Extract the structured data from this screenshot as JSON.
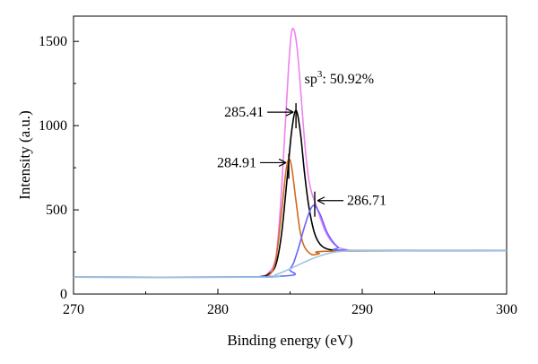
{
  "chart_data": {
    "type": "line",
    "title": "",
    "xlabel": "Binding energy (eV)",
    "ylabel": "Intensity (a.u.)",
    "xlim": [
      270,
      300
    ],
    "ylim": [
      0,
      1650
    ],
    "xticks": [
      270,
      280,
      290,
      300
    ],
    "yticks": [
      0,
      500,
      1000,
      1500
    ],
    "xtick_labels": [
      "270",
      "280",
      "290",
      "300"
    ],
    "ytick_labels": [
      "0",
      "500",
      "1000",
      "1500"
    ],
    "grid": false,
    "legend": "none",
    "series": [
      {
        "color": "#ee82ee",
        "x": [
          270,
          282,
          283,
          283.5,
          284,
          284.3,
          284.6,
          284.9,
          285.1,
          285.3,
          285.5,
          285.7,
          285.9,
          286.1,
          286.3,
          286.5,
          286.8,
          287.1,
          287.4,
          287.8,
          288.3,
          289,
          290,
          300
        ],
        "y": [
          100,
          100,
          105,
          125,
          210,
          480,
          900,
          1350,
          1555,
          1560,
          1450,
          1250,
          1020,
          820,
          680,
          600,
          530,
          450,
          380,
          320,
          280,
          262,
          258,
          258
        ]
      },
      {
        "color": "#000000",
        "x": [
          270,
          282,
          283,
          283.5,
          284,
          284.4,
          284.8,
          285.1,
          285.4,
          285.7,
          286,
          286.3,
          286.7,
          287.2,
          288,
          289,
          290,
          300
        ],
        "y": [
          100,
          100,
          104,
          118,
          170,
          350,
          690,
          960,
          1090,
          970,
          720,
          520,
          360,
          285,
          260,
          258,
          258,
          258
        ]
      },
      {
        "color": "#d2691e",
        "x": [
          270,
          282.5,
          283.5,
          284,
          284.4,
          284.7,
          284.9,
          285.1,
          285.4,
          285.7,
          286,
          286.5,
          287,
          288,
          300
        ],
        "y": [
          100,
          100,
          110,
          200,
          480,
          720,
          800,
          760,
          560,
          370,
          280,
          235,
          240,
          255,
          258
        ]
      },
      {
        "color": "#6666ff",
        "x": [
          270,
          284,
          285,
          285.5,
          286,
          286.4,
          286.7,
          287.1,
          287.6,
          288.3,
          289,
          300
        ],
        "y": [
          100,
          105,
          150,
          250,
          400,
          500,
          525,
          470,
          360,
          280,
          260,
          258
        ]
      },
      {
        "color": "#9bc8e0",
        "x": [
          270,
          283,
          284,
          285,
          286,
          287,
          288,
          289,
          290,
          300
        ],
        "y": [
          100,
          100,
          115,
          150,
          190,
          225,
          248,
          256,
          258,
          258
        ]
      }
    ],
    "annotations": [
      {
        "text": "285.41",
        "x": 285.41,
        "y": 1080,
        "side": "left"
      },
      {
        "text": "284.91",
        "x": 284.91,
        "y": 780,
        "side": "left"
      },
      {
        "text": "286.71",
        "x": 286.71,
        "y": 555,
        "side": "right"
      }
    ],
    "note_base": "sp",
    "note_sup": "3",
    "note_rest": ": 50.92%",
    "note_x": 286.0,
    "note_y": 1250
  }
}
